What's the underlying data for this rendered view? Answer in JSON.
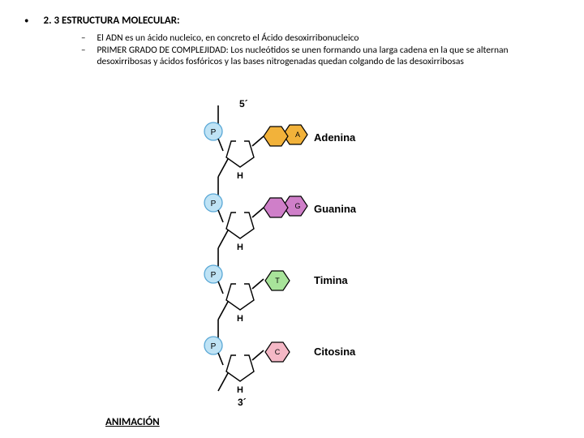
{
  "heading": "2. 3 ESTRUCTURA MOLECULAR:",
  "sub1": "El ADN es un ácido nucleico, en concreto el Ácido desoxirribonucleico",
  "sub2_lead": "PRIMER GRADO DE COMPLEJIDAD: ",
  "sub2_rest": "Los nucleótidos se unen formando una larga cadena en la que se alternan desoxirribosas y ácidos fosfóricos y las bases nitrogenadas quedan colgando de las desoxirribosas",
  "link_text": "ANIMACIÓN",
  "diagram": {
    "end5": "5´",
    "end3": "3´",
    "h_label": "H",
    "phosphate": {
      "label": "P",
      "fill": "#bfe3f5",
      "stroke": "#5aa8d6"
    },
    "sugar": {
      "fill": "#ffffff",
      "stroke": "#000000"
    },
    "bases": [
      {
        "letter": "A",
        "name": "Adenina",
        "fill": "#f2b23a",
        "shape": "hex2"
      },
      {
        "letter": "G",
        "name": "Guanina",
        "fill": "#cf7fc9",
        "shape": "hex2"
      },
      {
        "letter": "T",
        "name": "Timina",
        "fill": "#a8e49a",
        "shape": "hex1"
      },
      {
        "letter": "C",
        "name": "Citosina",
        "fill": "#f5b8c6",
        "shape": "hex1"
      }
    ],
    "unit_height": 88,
    "label_font": 13,
    "colors": {
      "bg": "#ffffff",
      "text": "#000000",
      "bond": "#000000"
    }
  }
}
